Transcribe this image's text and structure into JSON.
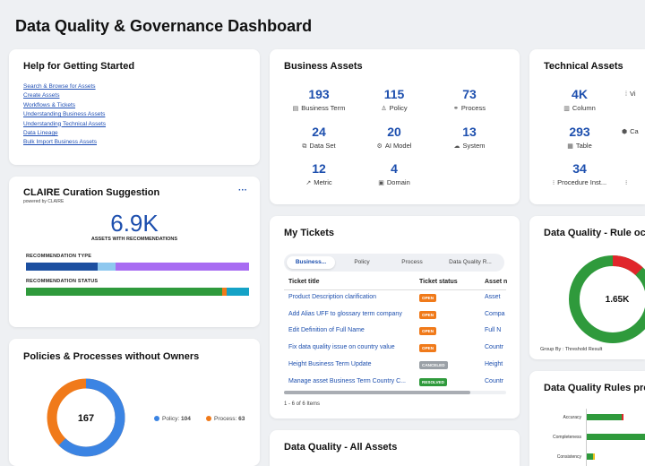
{
  "page": {
    "title": "Data Quality & Governance Dashboard"
  },
  "colors": {
    "blue": "#1d4fae",
    "orange": "#f07a1a",
    "green": "#2f9a3c",
    "purple": "#a86cf2",
    "red": "#e0262b",
    "teal": "#15a2c6",
    "navy": "#1c4fa0",
    "lightblue": "#8ec8ef"
  },
  "help": {
    "title": "Help for Getting Started",
    "links": [
      "Search & Browse for Assets",
      "Create Assets",
      "Workflows & Tickets",
      "Understanding Business Assets",
      "Understanding Technical Assets",
      "Data Lineage",
      "Bulk Import Business Assets"
    ]
  },
  "claire": {
    "title": "CLAIRE Curation Suggestion",
    "powered": "powered by CLAIRE",
    "menu": "···",
    "big_value": "6.9K",
    "big_label": "ASSETS WITH RECOMMENDATIONS",
    "type_label": "RECOMMENDATION TYPE",
    "status_label": "RECOMMENDATION STATUS",
    "type_segments": [
      0.32,
      0.08,
      0.6
    ],
    "status_segments": [
      0.88,
      0.02,
      0.1
    ]
  },
  "policies": {
    "title": "Policies & Processes without Owners",
    "center": "167",
    "items": [
      {
        "label": "Policy:",
        "value": "104",
        "fraction": 0.623
      },
      {
        "label": "Process:",
        "value": "63",
        "fraction": 0.377
      }
    ]
  },
  "business": {
    "title": "Business Assets",
    "metrics": [
      {
        "value": "193",
        "label": "Business Term",
        "icon": "document-icon",
        "glyph": "▤"
      },
      {
        "value": "115",
        "label": "Policy",
        "icon": "policy-icon",
        "glyph": "♙"
      },
      {
        "value": "73",
        "label": "Process",
        "icon": "process-icon",
        "glyph": "⚭"
      },
      {
        "value": "24",
        "label": "Data Set",
        "icon": "dataset-icon",
        "glyph": "⧉"
      },
      {
        "value": "20",
        "label": "AI Model",
        "icon": "ai-model-icon",
        "glyph": "⚙"
      },
      {
        "value": "13",
        "label": "System",
        "icon": "cloud-icon",
        "glyph": "☁"
      },
      {
        "value": "12",
        "label": "Metric",
        "icon": "metric-icon",
        "glyph": "↗"
      },
      {
        "value": "4",
        "label": "Domain",
        "icon": "domain-icon",
        "glyph": "▣"
      }
    ]
  },
  "technical": {
    "title": "Technical Assets",
    "metrics": [
      {
        "value": "4K",
        "label": "Column",
        "icon": "column-icon",
        "glyph": "▥"
      },
      {
        "value": "",
        "label": "Vi",
        "icon": "view-icon",
        "glyph": "⁞"
      },
      {
        "value": "293",
        "label": "Table",
        "icon": "table-icon",
        "glyph": "▦"
      },
      {
        "value": "",
        "label": "Ca",
        "icon": "cube-icon",
        "glyph": "⬢"
      },
      {
        "value": "34",
        "label": "Procedure Inst...",
        "icon": "procedure-icon",
        "glyph": "⁝"
      },
      {
        "value": "",
        "label": "",
        "icon": "more-icon",
        "glyph": "⁝"
      }
    ]
  },
  "tickets": {
    "title": "My Tickets",
    "tabs": [
      "Business...",
      "Policy",
      "Process",
      "Data Quality R..."
    ],
    "headers": [
      "Ticket title",
      "Ticket status",
      "Asset n"
    ],
    "rows": [
      {
        "title": "Product Description clarification",
        "status": "OPEN",
        "asset": "Asset"
      },
      {
        "title": "Add Alias UFF to glossary term company",
        "status": "OPEN",
        "asset": "Compa"
      },
      {
        "title": "Edit Definition of Full Name",
        "status": "OPEN",
        "asset": "Full N"
      },
      {
        "title": "Fix data quality issue on country value",
        "status": "OPEN",
        "asset": "Countr"
      },
      {
        "title": "Height Business Term Update",
        "status": "CANCELED",
        "asset": "Height"
      },
      {
        "title": "Manage asset Business Term Country C...",
        "status": "RESOLVED",
        "asset": "Countr"
      }
    ],
    "footer": "1 - 6 of 6 Items"
  },
  "dq_rule": {
    "title": "Data Quality - Rule occu",
    "center": "1.65K",
    "group_by": "Group By : Threshold Result",
    "segments": [
      0.88,
      0.12
    ]
  },
  "dq_profile": {
    "title": "Data Quality Rules profi",
    "rows": [
      {
        "label": "Accuracy",
        "green": 0.55,
        "red": 0.08
      },
      {
        "label": "Completeness",
        "green": 1.0,
        "red": 0
      },
      {
        "label": "Consistency",
        "green": 0.1,
        "yellow": 0.08
      }
    ]
  },
  "dq_all": {
    "title": "Data Quality - All Assets"
  }
}
